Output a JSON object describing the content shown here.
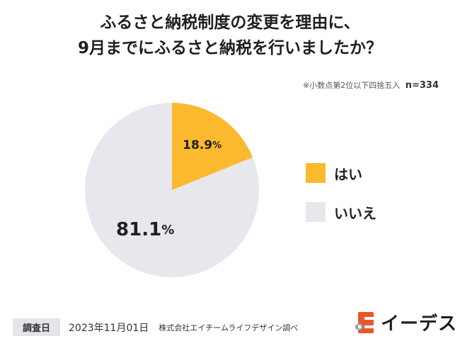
{
  "title": {
    "line1": "ふるさと納税制度の変更を理由に、",
    "line2": "9月までにふるさと納税を行いましたか？"
  },
  "note": {
    "rounding": "※小数点第2位以下四捨五入",
    "sample": "n=334"
  },
  "chart_data": {
    "type": "pie",
    "categories": [
      "はい",
      "いいえ"
    ],
    "values": [
      18.9,
      81.1
    ],
    "colors": [
      "#fbb92d",
      "#e6e8ee"
    ],
    "value_labels": [
      "18.9",
      "81.1"
    ],
    "unit": "%",
    "start": "12 o'clock, clockwise",
    "legend_position": "right"
  },
  "legend": {
    "items": [
      {
        "label": "はい",
        "color": "#fbb92d"
      },
      {
        "label": "いいえ",
        "color": "#e6e8ee"
      }
    ]
  },
  "footer": {
    "tag": "調査日",
    "date": "2023年11月01日",
    "company": "株式会社エイチームライフデザイン調べ"
  },
  "logo": {
    "text": "イーデス",
    "icon": "e-building-logo-icon",
    "accent_color": "#e8572a"
  }
}
